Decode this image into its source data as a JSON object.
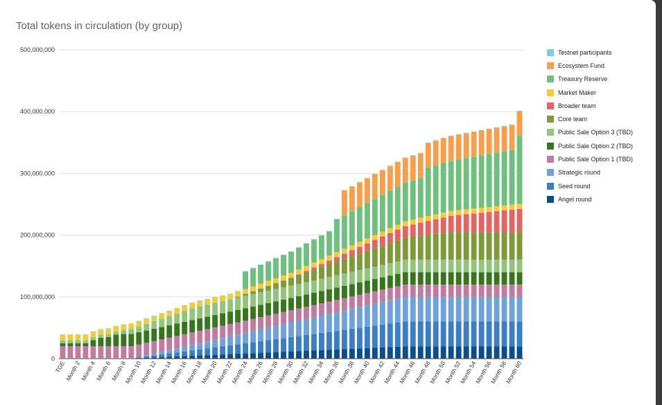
{
  "chart_data": {
    "type": "bar",
    "stacked": true,
    "title": "Total tokens in circulation (by group)",
    "xlabel": "",
    "ylabel": "",
    "ylim": [
      0,
      500000000
    ],
    "yticks": [
      "0",
      "100,000,000",
      "200,000,000",
      "300,000,000",
      "400,000,000",
      "500,000,000"
    ],
    "ytick_values": [
      0,
      100000000,
      200000000,
      300000000,
      400000000,
      500000000
    ],
    "grid": true,
    "legend_position": "right",
    "categories": [
      "TGE",
      "Month 1",
      "Month 2",
      "Month 3",
      "Month 4",
      "Month 5",
      "Month 6",
      "Month 7",
      "Month 8",
      "Month 9",
      "Month 10",
      "Month 11",
      "Month 12",
      "Month 13",
      "Month 14",
      "Month 15",
      "Month 16",
      "Month 17",
      "Month 18",
      "Month 19",
      "Month 20",
      "Month 21",
      "Month 22",
      "Month 23",
      "Month 24",
      "Month 25",
      "Month 26",
      "Month 27",
      "Month 28",
      "Month 29",
      "Month 30",
      "Month 31",
      "Month 32",
      "Month 33",
      "Month 34",
      "Month 35",
      "Month 36",
      "Month 37",
      "Month 38",
      "Month 39",
      "Month 40",
      "Month 41",
      "Month 42",
      "Month 43",
      "Month 44",
      "Month 45",
      "Month 46",
      "Month 47",
      "Month 48",
      "Month 49",
      "Month 50",
      "Month 51",
      "Month 52",
      "Month 53",
      "Month 54",
      "Month 55",
      "Month 56",
      "Month 57",
      "Month 58",
      "Month 59",
      "Month 60"
    ],
    "visible_tick_labels": [
      "TGE",
      "Month 2",
      "Month 4",
      "Month 6",
      "Month 8",
      "Month 10",
      "Month 12",
      "Month 14",
      "Month 16",
      "Month 18",
      "Month 20",
      "Month 22",
      "Month 24",
      "Month 26",
      "Month 28",
      "Month 30",
      "Month 32",
      "Month 34",
      "Month 36",
      "Month 38",
      "Month 40",
      "Month 42",
      "Month 44",
      "Month 46",
      "Month 48",
      "Month 50",
      "Month 52",
      "Month 54",
      "Month 56",
      "Month 58",
      "Month 60"
    ],
    "series": [
      {
        "name": "Angel round",
        "color": "#0b4f8a",
        "values": [
          0,
          0,
          0,
          0,
          0,
          0,
          0,
          0,
          0,
          0,
          555556,
          1111111,
          1666667,
          2222222,
          2777778,
          3333333,
          3888889,
          4444444,
          5000000,
          5555556,
          6111111,
          6666667,
          7222222,
          7777778,
          8333333,
          8888889,
          9444444,
          10000000,
          10555556,
          11111111,
          11666667,
          12222222,
          12777778,
          13333333,
          13888889,
          14444444,
          15000000,
          15555556,
          16111111,
          16666667,
          17222222,
          17777778,
          18333333,
          18888889,
          19444444,
          20000000,
          20000000,
          20000000,
          20000000,
          20000000,
          20000000,
          20000000,
          20000000,
          20000000,
          20000000,
          20000000,
          20000000,
          20000000,
          20000000,
          20000000,
          20000000
        ]
      },
      {
        "name": "Seed round",
        "color": "#3d7ec3",
        "values": [
          0,
          0,
          0,
          0,
          0,
          0,
          0,
          0,
          0,
          0,
          1111111,
          2222222,
          3333333,
          4444444,
          5555556,
          6666667,
          7777778,
          8888889,
          10000000,
          11111111,
          12222222,
          13333333,
          14444444,
          15555556,
          16666667,
          17777778,
          18888889,
          20000000,
          21111111,
          22222222,
          23333333,
          24444444,
          25555556,
          26666667,
          27777778,
          28888889,
          30000000,
          31111111,
          32222222,
          33333333,
          34444444,
          35555556,
          36666667,
          37777778,
          38888889,
          40000000,
          40000000,
          40000000,
          40000000,
          40000000,
          40000000,
          40000000,
          40000000,
          40000000,
          40000000,
          40000000,
          40000000,
          40000000,
          40000000,
          40000000,
          40000000
        ]
      },
      {
        "name": "Strategic round",
        "color": "#6fa3d8",
        "values": [
          0,
          0,
          0,
          0,
          0,
          0,
          0,
          0,
          0,
          0,
          1111111,
          2222222,
          3333333,
          4444444,
          5555556,
          6666667,
          7777778,
          8888889,
          10000000,
          11111111,
          12222222,
          13333333,
          14444444,
          15555556,
          16666667,
          17777778,
          18888889,
          20000000,
          21111111,
          22222222,
          23333333,
          24444444,
          25555556,
          26666667,
          27777778,
          28888889,
          30000000,
          31111111,
          32222222,
          33333333,
          34444444,
          35555556,
          36666667,
          37777778,
          38888889,
          40000000,
          40000000,
          40000000,
          40000000,
          40000000,
          40000000,
          40000000,
          40000000,
          40000000,
          40000000,
          40000000,
          40000000,
          40000000,
          40000000,
          40000000,
          40000000
        ]
      },
      {
        "name": "Public Sale Option 1 (TBD)",
        "color": "#c27ba0",
        "values": [
          20000000,
          20000000,
          20000000,
          20000000,
          20000000,
          20000000,
          20000000,
          20000000,
          20000000,
          20000000,
          20000000,
          20000000,
          20000000,
          20000000,
          20000000,
          20000000,
          20000000,
          20000000,
          20000000,
          20000000,
          20000000,
          20000000,
          20000000,
          20000000,
          20000000,
          20000000,
          20000000,
          20000000,
          20000000,
          20000000,
          20000000,
          20000000,
          20000000,
          20000000,
          20000000,
          20000000,
          20000000,
          20000000,
          20000000,
          20000000,
          20000000,
          20000000,
          20000000,
          20000000,
          20000000,
          20000000,
          20000000,
          20000000,
          20000000,
          20000000,
          20000000,
          20000000,
          20000000,
          20000000,
          20000000,
          20000000,
          20000000,
          20000000,
          20000000,
          20000000,
          20000000
        ]
      },
      {
        "name": "Public Sale Option 2 (TBD)",
        "color": "#38761d",
        "values": [
          5000000,
          5000000,
          5000000,
          5000000,
          10000000,
          13750000,
          15000000,
          18750000,
          20000000,
          20000000,
          20000000,
          20000000,
          20000000,
          20000000,
          20000000,
          20000000,
          20000000,
          20000000,
          20000000,
          20000000,
          20000000,
          20000000,
          20000000,
          20000000,
          20000000,
          20000000,
          20000000,
          20000000,
          20000000,
          20000000,
          20000000,
          20000000,
          20000000,
          20000000,
          20000000,
          20000000,
          20000000,
          20000000,
          20000000,
          20000000,
          20000000,
          20000000,
          20000000,
          20000000,
          20000000,
          20000000,
          20000000,
          20000000,
          20000000,
          20000000,
          20000000,
          20000000,
          20000000,
          20000000,
          20000000,
          20000000,
          20000000,
          20000000,
          20000000,
          20000000,
          20000000
        ]
      },
      {
        "name": "Public Sale Option 3 (TBD)",
        "color": "#93c47d",
        "values": [
          5000000,
          5000000,
          5000000,
          5000000,
          5000000,
          5000000,
          5000000,
          5000000,
          6428571,
          7857143,
          9285714,
          10714286,
          12142857,
          13571429,
          15000000,
          16428571,
          17857143,
          19285714,
          20000000,
          20000000,
          20000000,
          20000000,
          20000000,
          20000000,
          20000000,
          20000000,
          20000000,
          20000000,
          20000000,
          20000000,
          20000000,
          20000000,
          20000000,
          20000000,
          20000000,
          20000000,
          20000000,
          20000000,
          20000000,
          20000000,
          20000000,
          20000000,
          20000000,
          20000000,
          20000000,
          20000000,
          20000000,
          20000000,
          20000000,
          20000000,
          20000000,
          20000000,
          20000000,
          20000000,
          20000000,
          20000000,
          20000000,
          20000000,
          20000000,
          20000000,
          20000000
        ]
      },
      {
        "name": "Core team",
        "color": "#7f9a3a",
        "values": [
          0,
          0,
          0,
          0,
          0,
          0,
          0,
          0,
          0,
          0,
          0,
          0,
          0,
          0,
          0,
          0,
          0,
          0,
          0,
          0,
          0,
          0,
          0,
          1555556,
          3111111,
          4666667,
          6222222,
          7777778,
          9333333,
          10888889,
          12444444,
          14000000,
          15555556,
          17111111,
          18666667,
          20222222,
          21777778,
          23333333,
          24888889,
          26444444,
          28000000,
          29555556,
          31111111,
          32666667,
          34222222,
          35777778,
          37333333,
          38888889,
          40444444,
          42000000,
          43555556,
          45000000,
          45000000,
          45000000,
          45000000,
          45000000,
          45000000,
          45000000,
          45000000,
          45000000,
          45000000
        ]
      },
      {
        "name": "Broader team",
        "color": "#e06666",
        "values": [
          0,
          0,
          0,
          0,
          0,
          0,
          0,
          0,
          0,
          0,
          0,
          0,
          0,
          0,
          0,
          0,
          0,
          0,
          0,
          0,
          0,
          0,
          0,
          0,
          0,
          0,
          0,
          0,
          0,
          0,
          0,
          1250000,
          2500000,
          3750000,
          5000000,
          6250000,
          7500000,
          8750000,
          10000000,
          11250000,
          12500000,
          13750000,
          15000000,
          16250000,
          17500000,
          18750000,
          20000000,
          21250000,
          22500000,
          23750000,
          25000000,
          26250000,
          27500000,
          28750000,
          30000000,
          31250000,
          32500000,
          33750000,
          35000000,
          36250000,
          37500000
        ]
      },
      {
        "name": "Market Maker",
        "color": "#f4cc3b",
        "values": [
          8000000,
          8000000,
          8000000,
          8000000,
          8000000,
          8000000,
          8000000,
          8000000,
          8000000,
          8000000,
          8000000,
          8000000,
          8000000,
          8000000,
          8000000,
          8000000,
          8000000,
          8000000,
          8000000,
          8000000,
          8000000,
          8000000,
          8000000,
          8000000,
          8000000,
          8000000,
          8000000,
          8000000,
          8000000,
          8000000,
          8000000,
          8000000,
          8000000,
          8000000,
          8000000,
          8000000,
          8000000,
          8000000,
          8000000,
          8000000,
          8000000,
          8000000,
          8000000,
          8000000,
          8000000,
          8000000,
          8000000,
          8000000,
          8000000,
          8000000,
          8000000,
          8000000,
          8000000,
          8000000,
          8000000,
          8000000,
          8000000,
          8000000,
          8000000,
          8000000,
          8000000
        ]
      },
      {
        "name": "Treasury Reserve",
        "color": "#6fbf7f",
        "values": [
          0,
          0,
          0,
          0,
          0,
          0,
          0,
          0,
          0,
          0,
          0,
          0,
          0,
          0,
          0,
          0,
          0,
          0,
          0,
          0,
          0,
          0,
          0,
          0,
          28000000,
          29000000,
          30000000,
          31000000,
          32000000,
          33000000,
          34000000,
          35000000,
          36000000,
          37000000,
          38000000,
          39000000,
          53000000,
          54000000,
          55000000,
          56000000,
          57000000,
          58000000,
          59000000,
          60000000,
          61000000,
          62000000,
          63000000,
          64000000,
          78000000,
          79000000,
          80000000,
          81000000,
          82000000,
          83000000,
          84000000,
          85000000,
          86000000,
          87000000,
          88000000,
          89000000,
          110000000
        ]
      },
      {
        "name": "Ecosystem Fund",
        "color": "#f6a04d",
        "values": [
          0,
          0,
          0,
          0,
          0,
          0,
          0,
          0,
          0,
          0,
          0,
          0,
          0,
          0,
          0,
          0,
          0,
          0,
          0,
          0,
          0,
          0,
          0,
          0,
          0,
          0,
          0,
          0,
          0,
          0,
          0,
          0,
          0,
          0,
          0,
          0,
          0,
          40000000,
          40000000,
          40000000,
          40000000,
          40000000,
          40000000,
          40000000,
          40000000,
          40000000,
          40000000,
          40000000,
          40000000,
          40000000,
          40000000,
          40000000,
          40000000,
          40000000,
          40000000,
          40000000,
          40000000,
          40000000,
          40000000,
          40000000,
          40000000
        ]
      },
      {
        "name": "Testnet participants",
        "color": "#7fcfd6",
        "values": [
          1000000,
          1000000,
          1000000,
          1000000,
          1000000,
          1000000,
          1000000,
          1000000,
          1000000,
          1000000,
          1000000,
          1000000,
          1000000,
          1000000,
          1000000,
          1000000,
          1000000,
          1000000,
          1000000,
          1000000,
          1000000,
          1000000,
          1000000,
          1000000,
          1000000,
          1000000,
          1000000,
          1000000,
          1000000,
          1000000,
          1000000,
          1000000,
          1000000,
          1000000,
          1000000,
          1000000,
          1000000,
          1000000,
          1000000,
          1000000,
          1000000,
          1000000,
          1000000,
          1000000,
          1000000,
          1000000,
          1000000,
          1000000,
          1000000,
          1000000,
          1000000,
          1000000,
          1000000,
          1000000,
          1000000,
          1000000,
          1000000,
          1000000,
          1000000,
          1000000,
          1000000
        ]
      }
    ],
    "legend_order": [
      "Testnet participants",
      "Ecosystem Fund",
      "Treasury Reserve",
      "Market Maker",
      "Broader team",
      "Core team",
      "Public Sale Option 3 (TBD)",
      "Public Sale Option 2 (TBD)",
      "Public Sale Option 1 (TBD)",
      "Strategic round",
      "Seed round",
      "Angel round"
    ]
  }
}
